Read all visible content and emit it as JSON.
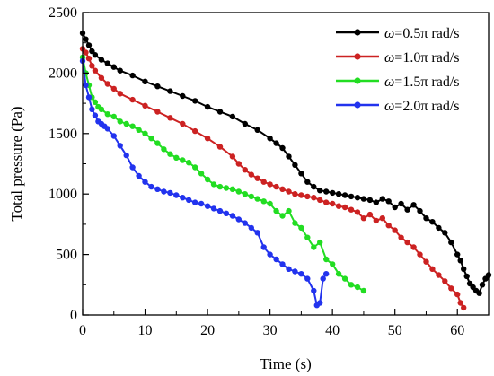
{
  "chart_data": {
    "type": "line",
    "title": "",
    "xlabel": "Time (s)",
    "ylabel": "Total pressure (Pa)",
    "xlim": [
      0,
      65
    ],
    "ylim": [
      0,
      2500
    ],
    "x_ticks": [
      "0",
      "10",
      "20",
      "30",
      "40",
      "50",
      "60"
    ],
    "y_ticks": [
      "0",
      "500",
      "1000",
      "1500",
      "2000",
      "2500"
    ],
    "legend_position": "top-right",
    "series": [
      {
        "name": "ω=0.5π rad/s",
        "legend_symbol": "ω",
        "legend_rest": "=0.5π rad/s",
        "color": "#000000",
        "x": [
          0,
          0.5,
          1,
          1.5,
          2,
          3,
          4,
          5,
          6,
          8,
          10,
          12,
          14,
          16,
          18,
          20,
          22,
          24,
          26,
          28,
          30,
          31,
          32,
          33,
          34,
          35,
          36,
          37,
          38,
          39,
          40,
          41,
          42,
          43,
          44,
          45,
          46,
          47,
          48,
          49,
          50,
          51,
          52,
          53,
          54,
          55,
          56,
          57,
          58,
          59,
          60,
          60.5,
          61,
          61.5,
          62,
          62.5,
          63,
          63.5,
          64,
          64.5,
          65
        ],
        "y": [
          2330,
          2280,
          2230,
          2180,
          2150,
          2110,
          2080,
          2050,
          2020,
          1980,
          1930,
          1890,
          1850,
          1810,
          1770,
          1720,
          1680,
          1640,
          1580,
          1530,
          1460,
          1420,
          1380,
          1310,
          1240,
          1170,
          1100,
          1060,
          1030,
          1020,
          1010,
          1000,
          990,
          980,
          970,
          960,
          950,
          930,
          960,
          940,
          890,
          920,
          870,
          910,
          860,
          800,
          770,
          720,
          680,
          600,
          500,
          450,
          380,
          320,
          260,
          230,
          200,
          180,
          250,
          300,
          330
        ]
      },
      {
        "name": "ω=1.0π rad/s",
        "legend_symbol": "ω",
        "legend_rest": "=1.0π rad/s",
        "color": "#cc2222",
        "x": [
          0,
          0.5,
          1,
          1.5,
          2,
          3,
          4,
          5,
          6,
          8,
          10,
          12,
          14,
          16,
          18,
          20,
          22,
          24,
          25,
          26,
          27,
          28,
          29,
          30,
          31,
          32,
          33,
          34,
          35,
          36,
          37,
          38,
          39,
          40,
          41,
          42,
          43,
          44,
          45,
          46,
          47,
          48,
          49,
          50,
          51,
          52,
          53,
          54,
          55,
          56,
          57,
          58,
          59,
          60,
          60.5,
          61
        ],
        "y": [
          2200,
          2170,
          2120,
          2060,
          2020,
          1960,
          1910,
          1870,
          1830,
          1780,
          1730,
          1680,
          1630,
          1580,
          1520,
          1460,
          1390,
          1310,
          1250,
          1200,
          1160,
          1130,
          1100,
          1080,
          1060,
          1040,
          1020,
          1000,
          990,
          980,
          970,
          950,
          930,
          920,
          900,
          890,
          870,
          850,
          800,
          830,
          780,
          800,
          740,
          700,
          640,
          600,
          560,
          500,
          440,
          380,
          330,
          280,
          220,
          170,
          100,
          60
        ]
      },
      {
        "name": "ω=1.5π rad/s",
        "legend_symbol": "ω",
        "legend_rest": "=1.5π rad/s",
        "color": "#22dd22",
        "x": [
          0,
          0.5,
          1,
          1.5,
          2,
          2.5,
          3,
          4,
          5,
          6,
          7,
          8,
          9,
          10,
          11,
          12,
          13,
          14,
          15,
          16,
          17,
          18,
          19,
          20,
          21,
          22,
          23,
          24,
          25,
          26,
          27,
          28,
          29,
          30,
          31,
          32,
          33,
          34,
          35,
          36,
          37,
          38,
          39,
          40,
          41,
          42,
          43,
          44,
          45
        ],
        "y": [
          2130,
          2000,
          1900,
          1800,
          1760,
          1720,
          1700,
          1660,
          1640,
          1600,
          1580,
          1560,
          1530,
          1500,
          1460,
          1420,
          1370,
          1330,
          1300,
          1280,
          1260,
          1220,
          1170,
          1120,
          1080,
          1060,
          1050,
          1040,
          1020,
          1000,
          980,
          960,
          940,
          920,
          860,
          820,
          860,
          760,
          720,
          640,
          560,
          600,
          460,
          420,
          340,
          300,
          250,
          230,
          200
        ]
      },
      {
        "name": "ω=2.0π rad/s",
        "legend_symbol": "ω",
        "legend_rest": "=2.0π rad/s",
        "color": "#2233ee",
        "x": [
          0,
          0.5,
          1,
          1.5,
          2,
          2.5,
          3,
          3.5,
          4,
          5,
          6,
          7,
          8,
          9,
          10,
          11,
          12,
          13,
          14,
          15,
          16,
          17,
          18,
          19,
          20,
          21,
          22,
          23,
          24,
          25,
          26,
          27,
          28,
          29,
          30,
          31,
          32,
          33,
          34,
          35,
          36,
          37,
          37.5,
          38,
          38.5,
          39
        ],
        "y": [
          2100,
          1900,
          1800,
          1700,
          1650,
          1600,
          1580,
          1560,
          1540,
          1480,
          1400,
          1320,
          1220,
          1150,
          1100,
          1060,
          1040,
          1020,
          1010,
          990,
          970,
          950,
          930,
          920,
          900,
          880,
          860,
          840,
          820,
          790,
          760,
          720,
          680,
          560,
          500,
          460,
          420,
          380,
          360,
          340,
          300,
          200,
          80,
          100,
          300,
          340
        ]
      }
    ]
  }
}
